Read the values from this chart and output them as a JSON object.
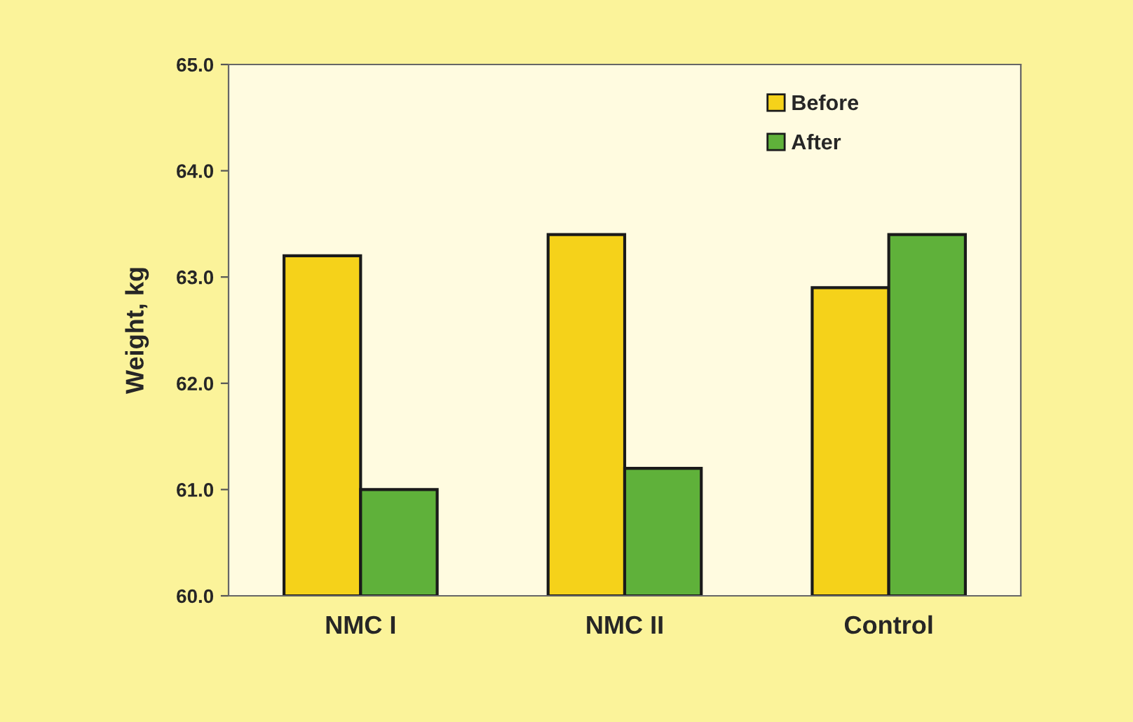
{
  "chart_data": {
    "type": "bar",
    "ylabel": "Weight, kg",
    "categories": [
      "NMC I",
      "NMC II",
      "Control"
    ],
    "series": [
      {
        "name": "Before",
        "color": "#f5d21a",
        "values": [
          63.2,
          63.4,
          62.9
        ]
      },
      {
        "name": "After",
        "color": "#5fb13a",
        "values": [
          61.0,
          61.2,
          63.4
        ]
      }
    ],
    "ylim": [
      60,
      65
    ],
    "yticks": [
      {
        "value": 60,
        "label": "60.0"
      },
      {
        "value": 61,
        "label": "61.0"
      },
      {
        "value": 62,
        "label": "62.0"
      },
      {
        "value": 63,
        "label": "63.0"
      },
      {
        "value": 64,
        "label": "64.0"
      },
      {
        "value": 65,
        "label": "65.0"
      }
    ],
    "grid": false,
    "legend": "top right"
  }
}
